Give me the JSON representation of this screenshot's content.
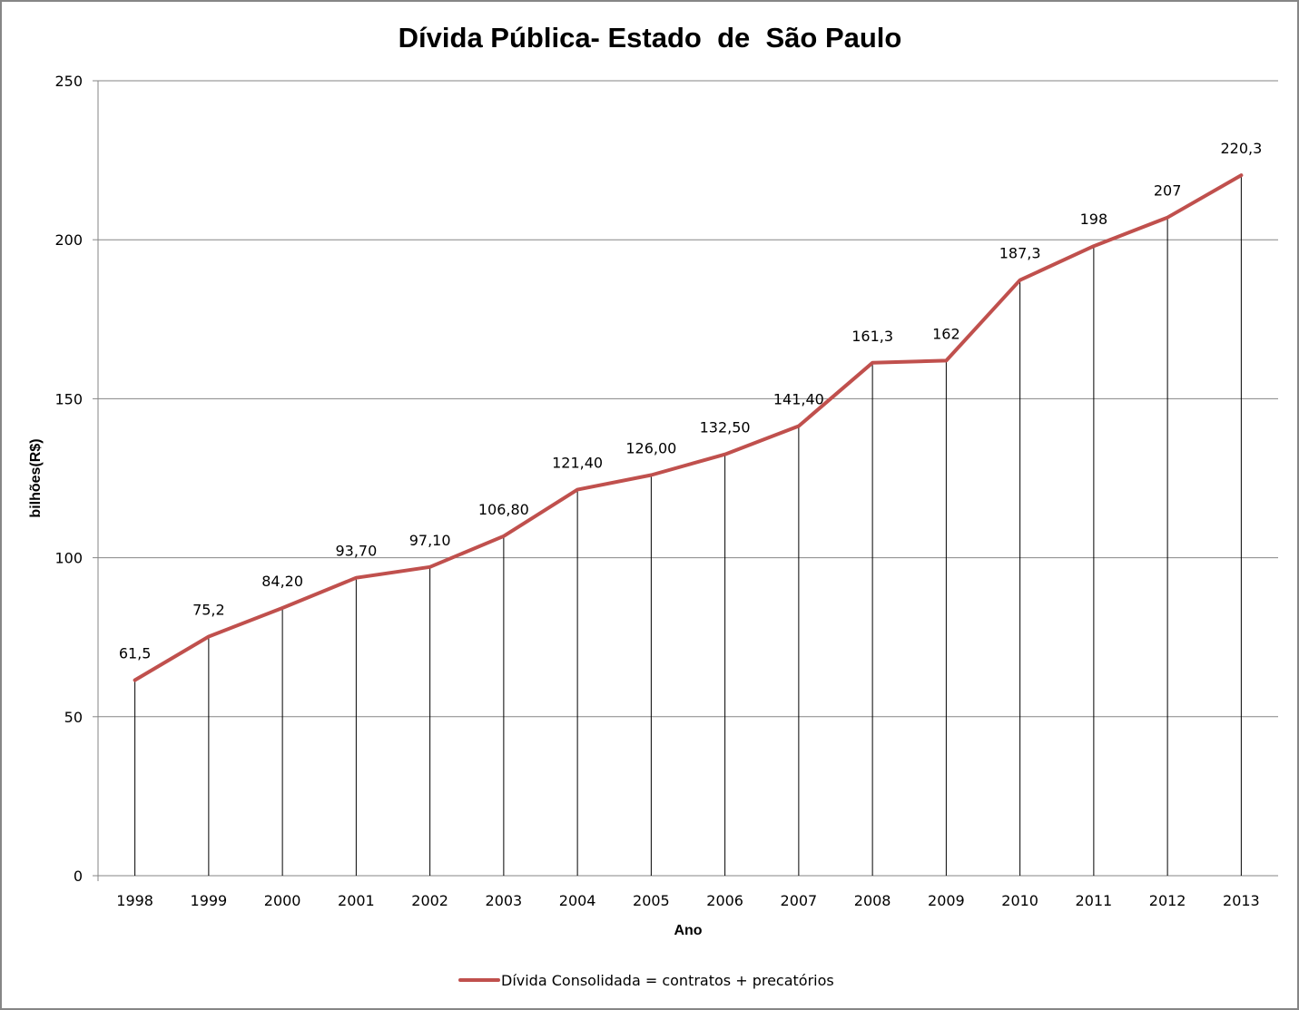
{
  "chart_data": {
    "type": "line",
    "title": "Dívida Pública- Estado  de  São Paulo",
    "xlabel": "Ano",
    "ylabel": "bilhões(R$)",
    "ylim": [
      0,
      250
    ],
    "yticks": [
      0,
      50,
      100,
      150,
      200,
      250
    ],
    "ytick_labels": [
      "0",
      "50",
      "100",
      "150",
      "200",
      "250"
    ],
    "grid": true,
    "drop_lines": true,
    "legend_position": "bottom",
    "categories": [
      "1998",
      "1999",
      "2000",
      "2001",
      "2002",
      "2003",
      "2004",
      "2005",
      "2006",
      "2007",
      "2008",
      "2009",
      "2010",
      "2011",
      "2012",
      "2013"
    ],
    "series": [
      {
        "name": "Dívida Consolidada = contratos + precatórios",
        "color": "#c0504d",
        "values": [
          61.5,
          75.2,
          84.2,
          93.7,
          97.1,
          106.8,
          121.4,
          126.0,
          132.5,
          141.4,
          161.3,
          162,
          187.3,
          198,
          207,
          220.3
        ],
        "data_labels": [
          "61,5",
          "75,2",
          "84,20",
          "93,70",
          "97,10",
          "106,80",
          "121,40",
          "126,00",
          "132,50",
          "141,40",
          "161,3",
          "162",
          "187,3",
          "198",
          "207",
          "220,3"
        ]
      }
    ]
  },
  "colors": {
    "gridline": "#868686",
    "drop_line": "#000000",
    "border": "#868686"
  }
}
